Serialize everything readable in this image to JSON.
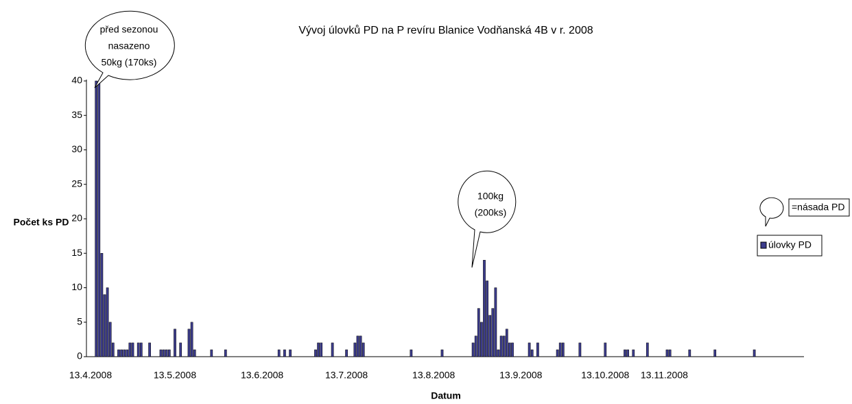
{
  "chart_data": {
    "type": "bar",
    "title": "Vývoj úlovků PD na P revíru Blanice Vodňanská 4B v r. 2008",
    "y_label": "Počet ks PD",
    "x_label": "Datum",
    "categories": [
      "13.4.2008",
      null,
      null,
      null,
      null,
      null,
      null,
      null,
      null,
      null,
      null,
      null,
      null,
      null,
      null,
      null,
      null,
      null,
      null,
      null,
      null,
      null,
      null,
      null,
      null,
      null,
      null,
      null,
      null,
      null,
      "13.5.2008",
      null,
      null,
      null,
      null,
      null,
      null,
      null,
      null,
      null,
      null,
      null,
      null,
      null,
      null,
      null,
      null,
      null,
      null,
      null,
      null,
      null,
      null,
      null,
      null,
      null,
      null,
      null,
      null,
      null,
      null,
      "13.6.2008",
      null,
      null,
      null,
      null,
      null,
      null,
      null,
      null,
      null,
      null,
      null,
      null,
      null,
      null,
      null,
      null,
      null,
      null,
      null,
      null,
      null,
      null,
      null,
      null,
      null,
      null,
      null,
      null,
      null,
      "13.7.2008",
      null,
      null,
      null,
      null,
      null,
      null,
      null,
      null,
      null,
      null,
      null,
      null,
      null,
      null,
      null,
      null,
      null,
      null,
      null,
      null,
      null,
      null,
      null,
      null,
      null,
      null,
      null,
      null,
      null,
      null,
      "13.8.2008",
      null,
      null,
      null,
      null,
      null,
      null,
      null,
      null,
      null,
      null,
      null,
      null,
      null,
      null,
      null,
      null,
      null,
      null,
      null,
      null,
      null,
      null,
      null,
      null,
      null,
      null,
      null,
      null,
      null,
      null,
      "13.9.2008",
      null,
      null,
      null,
      null,
      null,
      null,
      null,
      null,
      null,
      null,
      null,
      null,
      null,
      null,
      null,
      null,
      null,
      null,
      null,
      null,
      null,
      null,
      null,
      null,
      null,
      null,
      null,
      null,
      null,
      "13.10.2008",
      null,
      null,
      null,
      null,
      null,
      null,
      null,
      null,
      null,
      null,
      null,
      null,
      null,
      null,
      null,
      null,
      null,
      null,
      null,
      null,
      "13.11.2008",
      null,
      null,
      null,
      null,
      null,
      null,
      null,
      null,
      null,
      null,
      null,
      null,
      null,
      null,
      null,
      null,
      null,
      null,
      null,
      null,
      null,
      null,
      null,
      null,
      null,
      null,
      null,
      null,
      null,
      null,
      null,
      null,
      null,
      null,
      null,
      null,
      null,
      null,
      null,
      null,
      null,
      null,
      null,
      null,
      null
    ],
    "series": [
      {
        "name": "úlovky PD",
        "color": "#3c3c8c",
        "values": [
          0,
          0,
          40,
          40,
          15,
          9,
          10,
          5,
          2,
          0,
          1,
          1,
          1,
          1,
          2,
          2,
          0,
          2,
          2,
          0,
          0,
          2,
          0,
          0,
          0,
          1,
          1,
          1,
          1,
          0,
          4,
          0,
          2,
          0,
          0,
          4,
          5,
          1,
          0,
          0,
          0,
          0,
          0,
          1,
          0,
          0,
          0,
          0,
          1,
          0,
          0,
          0,
          0,
          0,
          0,
          0,
          0,
          0,
          0,
          0,
          0,
          0,
          0,
          0,
          0,
          0,
          0,
          1,
          0,
          1,
          0,
          1,
          0,
          0,
          0,
          0,
          0,
          0,
          0,
          0,
          1,
          2,
          2,
          0,
          0,
          0,
          2,
          0,
          0,
          0,
          0,
          1,
          0,
          0,
          2,
          3,
          3,
          2,
          0,
          0,
          0,
          0,
          0,
          0,
          0,
          0,
          0,
          0,
          0,
          0,
          0,
          0,
          0,
          0,
          1,
          0,
          0,
          0,
          0,
          0,
          0,
          0,
          0,
          0,
          0,
          1,
          0,
          0,
          0,
          0,
          0,
          0,
          0,
          0,
          0,
          0,
          2,
          3,
          7,
          5,
          14,
          11,
          6,
          7,
          10,
          1,
          3,
          3,
          4,
          2,
          2,
          0,
          0,
          0,
          0,
          0,
          2,
          1,
          0,
          2,
          0,
          0,
          0,
          0,
          0,
          0,
          1,
          2,
          2,
          0,
          0,
          0,
          0,
          0,
          2,
          0,
          0,
          0,
          0,
          0,
          0,
          0,
          0,
          2,
          0,
          0,
          0,
          0,
          0,
          0,
          1,
          1,
          0,
          1,
          0,
          0,
          0,
          0,
          2,
          0,
          0,
          0,
          0,
          0,
          0,
          1,
          1,
          0,
          0,
          0,
          0,
          0,
          0,
          1,
          0,
          0,
          0,
          0,
          0,
          0,
          0,
          0,
          1,
          0,
          0,
          0,
          0,
          0,
          0,
          0,
          0,
          0,
          0,
          0,
          0,
          0,
          1,
          0,
          0,
          0,
          0,
          0,
          0,
          0,
          0,
          0,
          0,
          0,
          0,
          0
        ]
      }
    ],
    "ylim": [
      0,
      40
    ],
    "yticks": [
      0,
      5,
      10,
      15,
      20,
      25,
      30,
      35,
      40
    ],
    "annotations": [
      {
        "lines": [
          "před sezonou",
          "nasazeno",
          "50kg (170ks)"
        ]
      },
      {
        "lines": [
          "100kg",
          "(200ks)"
        ]
      }
    ],
    "stocking_legend": "=násada PD"
  }
}
